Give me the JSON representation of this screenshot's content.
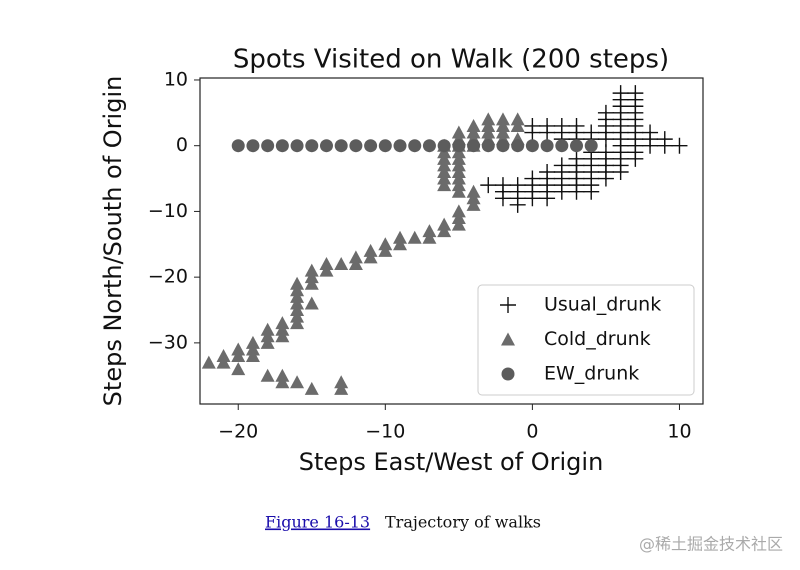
{
  "chart_data": {
    "type": "scatter",
    "title": "Spots Visited on Walk (200 steps)",
    "x_label": "Steps East/West of Origin",
    "y_label": "Steps North/South of Origin",
    "xlim": [
      -22.6,
      11.6
    ],
    "ylim": [
      -39.3,
      10.3
    ],
    "xticks": [
      {
        "value": -20,
        "label": "−20"
      },
      {
        "value": -10,
        "label": "−10"
      },
      0,
      10
    ],
    "yticks": [
      10,
      0,
      {
        "value": -10,
        "label": "−10"
      },
      {
        "value": -20,
        "label": "−20"
      },
      {
        "value": -30,
        "label": "−30"
      }
    ],
    "legend": "lower right",
    "series": [
      {
        "name": "Usual_drunk",
        "color": "#111111",
        "marker": "plus",
        "x": [
          6,
          7,
          6,
          7,
          6,
          7,
          5,
          6,
          7,
          5,
          6,
          7,
          0,
          1,
          2,
          3,
          5,
          6,
          7,
          0,
          1,
          2,
          3,
          4,
          5,
          6,
          7,
          8,
          2,
          3,
          4,
          5,
          6,
          7,
          8,
          9,
          6,
          7,
          8,
          9,
          10,
          4,
          5,
          6,
          7,
          3,
          4,
          5,
          6,
          7,
          2,
          3,
          4,
          5,
          6,
          1,
          2,
          3,
          4,
          5,
          6,
          0,
          1,
          2,
          3,
          4,
          5,
          -3,
          -2,
          -1,
          0,
          1,
          2,
          3,
          4,
          -2,
          -1,
          0,
          1,
          2,
          3,
          4,
          -2,
          -1,
          0,
          1,
          -1
        ],
        "y": [
          8,
          8,
          7,
          7,
          6,
          6,
          5,
          5,
          5,
          4,
          4,
          4,
          3,
          3,
          3,
          3,
          3,
          3,
          3,
          2,
          2,
          2,
          2,
          2,
          2,
          2,
          2,
          2,
          1,
          1,
          1,
          1,
          1,
          1,
          1,
          1,
          0,
          0,
          0,
          0,
          0,
          -1,
          -1,
          -1,
          -1,
          -2,
          -2,
          -2,
          -2,
          -2,
          -3,
          -3,
          -3,
          -3,
          -3,
          -4,
          -4,
          -4,
          -4,
          -4,
          -4,
          -5,
          -5,
          -5,
          -5,
          -5,
          -5,
          -6,
          -6,
          -6,
          -6,
          -6,
          -6,
          -6,
          -6,
          -7,
          -7,
          -7,
          -7,
          -7,
          -7,
          -7,
          -8,
          -8,
          -8,
          -8,
          -9
        ]
      },
      {
        "name": "Cold_drunk",
        "color": "#6b6b6b",
        "marker": "triangle",
        "x": [
          -3,
          -2,
          -1,
          -4,
          -3,
          -2,
          -1,
          -5,
          -4,
          -3,
          -2,
          -5,
          -4,
          -3,
          -2,
          -1,
          -6,
          -5,
          -4,
          -6,
          -5,
          -6,
          -5,
          -6,
          -5,
          -6,
          -5,
          -6,
          -5,
          -6,
          -5,
          -5,
          -4,
          -4,
          -4,
          -5,
          -5,
          -5,
          -6,
          -6,
          -7,
          -7,
          -8,
          -9,
          -9,
          -10,
          -10,
          -11,
          -11,
          -12,
          -12,
          -13,
          -14,
          -14,
          -15,
          -15,
          -15,
          -16,
          -16,
          -16,
          -15,
          -16,
          -16,
          -16,
          -16,
          -17,
          -17,
          -18,
          -17,
          -18,
          -18,
          -19,
          -19,
          -20,
          -19,
          -20,
          -21,
          -21,
          -22,
          -20,
          -17,
          -18,
          -16,
          -17,
          -13,
          -15,
          -13
        ],
        "y": [
          4,
          4,
          4,
          3,
          3,
          3,
          3,
          2,
          2,
          2,
          2,
          1,
          1,
          1,
          1,
          1,
          0,
          0,
          0,
          -1,
          -1,
          -2,
          -2,
          -3,
          -3,
          -4,
          -4,
          -5,
          -5,
          -6,
          -6,
          -7,
          -7,
          -8,
          -9,
          -10,
          -11,
          -12,
          -12,
          -13,
          -13,
          -14,
          -14,
          -14,
          -15,
          -15,
          -16,
          -16,
          -17,
          -17,
          -18,
          -18,
          -18,
          -19,
          -19,
          -20,
          -21,
          -21,
          -22,
          -23,
          -24,
          -24,
          -25,
          -26,
          -27,
          -27,
          -28,
          -28,
          -29,
          -29,
          -30,
          -30,
          -31,
          -31,
          -32,
          -32,
          -32,
          -33,
          -33,
          -34,
          -35,
          -35,
          -36,
          -36,
          -36,
          -37,
          -37
        ]
      },
      {
        "name": "EW_drunk",
        "color": "#5c5c5c",
        "marker": "circle",
        "x": [
          -20,
          -19,
          -18,
          -17,
          -16,
          -15,
          -14,
          -13,
          -12,
          -11,
          -10,
          -9,
          -8,
          -7,
          -6,
          -5,
          -4,
          -3,
          -2,
          -1,
          0,
          1,
          2,
          3,
          4
        ],
        "y": [
          0,
          0,
          0,
          0,
          0,
          0,
          0,
          0,
          0,
          0,
          0,
          0,
          0,
          0,
          0,
          0,
          0,
          0,
          0,
          0,
          0,
          0,
          0,
          0,
          0
        ]
      }
    ]
  },
  "caption": {
    "figure": "Figure 16-13",
    "text": "Trajectory of walks"
  },
  "watermark": "@稀土掘金技术社区"
}
